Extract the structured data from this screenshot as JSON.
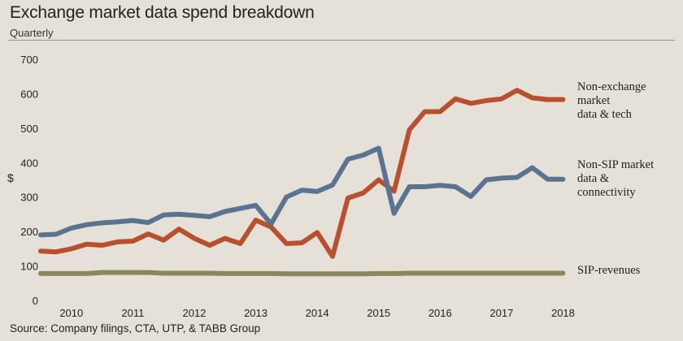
{
  "header": {
    "title": "Exchange market data spend breakdown",
    "subtitle": "Quarterly"
  },
  "footer": {
    "source": "Source: Company filings, CTA, UTP, & TABB Group"
  },
  "chart_data": {
    "type": "line",
    "title": "Exchange market data spend breakdown",
    "subtitle": "Quarterly",
    "xlabel": "",
    "ylabel": "$",
    "ylim": [
      0,
      700
    ],
    "y_ticks": [
      "0",
      "100",
      "200",
      "300",
      "400",
      "500",
      "600",
      "700"
    ],
    "y_tick_values": [
      0,
      100,
      200,
      300,
      400,
      500,
      600,
      700
    ],
    "x_ticks": [
      "2010",
      "2011",
      "2012",
      "2013",
      "2014",
      "2015",
      "2016",
      "2017",
      "2018"
    ],
    "x_tick_values": [
      2010,
      2011,
      2012,
      2013,
      2014,
      2015,
      2016,
      2017,
      2018
    ],
    "xlim": [
      2009.5,
      2018.1
    ],
    "grid": false,
    "legend": "direct labels at right end of each series",
    "x": [
      2009.5,
      2009.75,
      2010.0,
      2010.25,
      2010.5,
      2010.75,
      2011.0,
      2011.25,
      2011.5,
      2011.75,
      2012.0,
      2012.25,
      2012.5,
      2012.75,
      2013.0,
      2013.25,
      2013.5,
      2013.75,
      2014.0,
      2014.25,
      2014.5,
      2014.75,
      2015.0,
      2015.25,
      2015.5,
      2015.75,
      2016.0,
      2016.25,
      2016.5,
      2016.75,
      2017.0,
      2017.25,
      2017.5,
      2017.75,
      2018.0
    ],
    "series": [
      {
        "name_lines": [
          "Non-exchange",
          "market",
          "data & tech"
        ],
        "color": "#b8502e",
        "values": [
          143,
          141,
          150,
          163,
          160,
          170,
          172,
          193,
          175,
          207,
          180,
          160,
          180,
          165,
          233,
          213,
          165,
          167,
          197,
          128,
          297,
          312,
          350,
          317,
          495,
          548,
          548,
          585,
          572,
          580,
          585,
          610,
          588,
          583,
          583
        ]
      },
      {
        "name_lines": [
          "Non-SIP market",
          "data &",
          "connectivity"
        ],
        "color": "#5a7390",
        "values": [
          190,
          192,
          210,
          220,
          225,
          228,
          232,
          226,
          248,
          250,
          247,
          243,
          258,
          267,
          276,
          222,
          300,
          320,
          316,
          335,
          410,
          422,
          442,
          253,
          330,
          330,
          334,
          330,
          302,
          350,
          355,
          357,
          385,
          352,
          352
        ]
      },
      {
        "name_lines": [
          "SIP-revenues"
        ],
        "color": "#8c8658",
        "values": [
          78,
          78,
          78,
          78,
          81,
          81,
          81,
          81,
          79,
          79,
          79,
          79,
          78,
          78,
          78,
          78,
          77,
          77,
          77,
          77,
          77,
          77,
          78,
          78,
          79,
          79,
          79,
          79,
          79,
          79,
          79,
          79,
          79,
          79,
          79
        ]
      }
    ]
  }
}
